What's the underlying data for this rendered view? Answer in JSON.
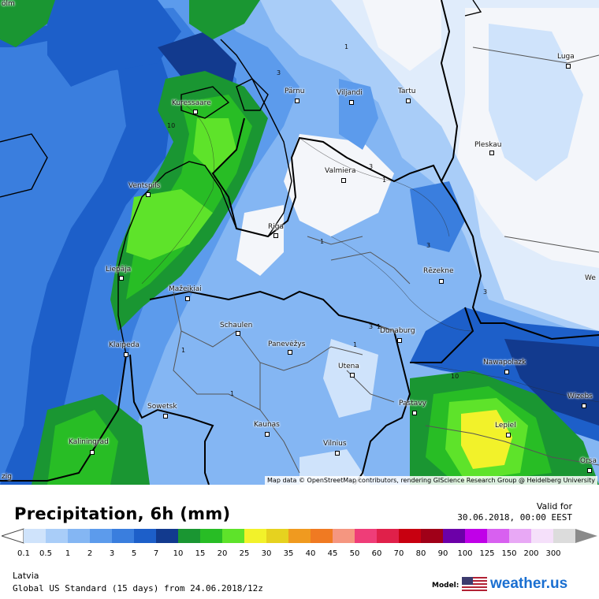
{
  "title": "Precipitation, 6h (mm)",
  "valid_label": "Valid for",
  "valid_time": "30.06.2018, 00:00 EEST",
  "region": "Latvia",
  "model_run": "Global US Standard (15 days) from 24.06.2018/12z",
  "model_label": "Model:",
  "brand": "weather.us",
  "attribution": "Map data © OpenStreetMap contributors, rendering GIScience Research Group @ Heidelberg University",
  "legend": {
    "values": [
      "0.1",
      "0.5",
      "1",
      "2",
      "3",
      "5",
      "7",
      "10",
      "15",
      "20",
      "25",
      "30",
      "35",
      "40",
      "45",
      "50",
      "60",
      "70",
      "80",
      "90",
      "100",
      "125",
      "150",
      "200",
      "300"
    ],
    "colors": [
      "#cfe3fb",
      "#a9cdf8",
      "#84b6f3",
      "#5c9bec",
      "#3a7ede",
      "#1d5fc9",
      "#123a8e",
      "#1a9632",
      "#28bd25",
      "#5ee32a",
      "#f2f22a",
      "#e6d21f",
      "#f09a1f",
      "#f07a22",
      "#f59680",
      "#ef3d78",
      "#e0204a",
      "#c80010",
      "#a00018",
      "#6c00a8",
      "#c000e8",
      "#d860f0",
      "#e8a8f5",
      "#f5e0fa",
      "#dcdcdc"
    ]
  },
  "cities": [
    {
      "name": "Kuressaare"
    },
    {
      "name": "Pärnu"
    },
    {
      "name": "Viljandi"
    },
    {
      "name": "Tartu"
    },
    {
      "name": "Luga"
    },
    {
      "name": "Pleskau"
    },
    {
      "name": "Ventspils"
    },
    {
      "name": "Valmiera"
    },
    {
      "name": "Riga"
    },
    {
      "name": "Liepāja"
    },
    {
      "name": "Rēzekne"
    },
    {
      "name": "Mažeikiai"
    },
    {
      "name": "Schaulen"
    },
    {
      "name": "Panevėžys"
    },
    {
      "name": "Dunaburg"
    },
    {
      "name": "Klaipeda"
    },
    {
      "name": "Utena"
    },
    {
      "name": "Nawapolazk"
    },
    {
      "name": "Sowetsk"
    },
    {
      "name": "Pastavy"
    },
    {
      "name": "Wizebs"
    },
    {
      "name": "Kaunas"
    },
    {
      "name": "Lepiel"
    },
    {
      "name": "Kaliningrad"
    },
    {
      "name": "Vilnius"
    },
    {
      "name": "Orsa"
    },
    {
      "name": "We"
    },
    {
      "name": "ölm"
    },
    {
      "name": "zig"
    }
  ],
  "contour_labels": [
    "1",
    "3",
    "10",
    "3",
    "1",
    "1",
    "1",
    "1",
    "3",
    "1",
    "3",
    "10",
    "1",
    "3"
  ]
}
